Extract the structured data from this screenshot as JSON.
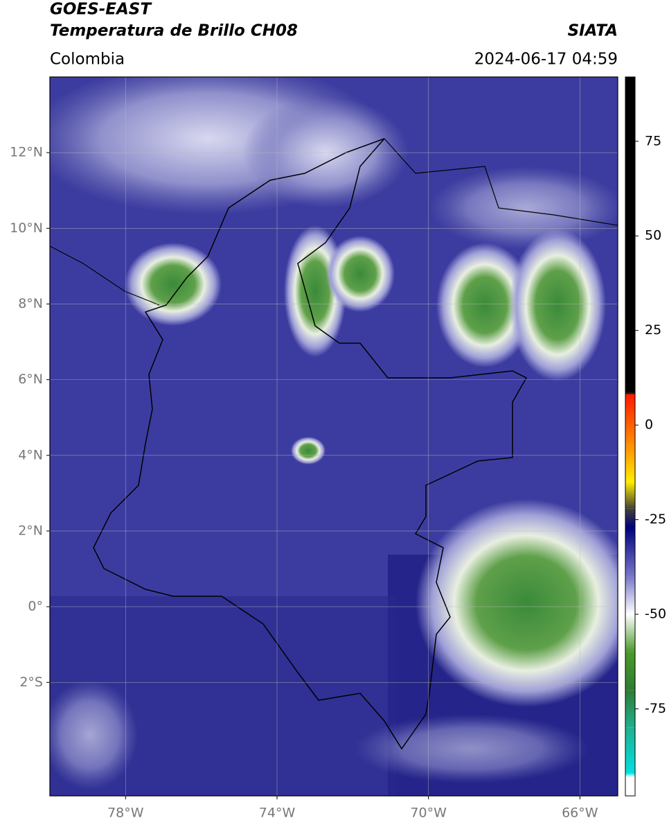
{
  "header": {
    "title": "GOES-EAST",
    "subtitle": "Temperatura de Brillo CH08",
    "region": "Colombia",
    "source": "SIATA",
    "datetime": "2024-06-17 04:59"
  },
  "map": {
    "xlim": [
      -80,
      -65
    ],
    "ylim": [
      -5,
      14
    ],
    "grid": true,
    "xticks": [
      {
        "value": -78,
        "label": "78°W"
      },
      {
        "value": -74,
        "label": "74°W"
      },
      {
        "value": -70,
        "label": "70°W"
      },
      {
        "value": -66,
        "label": "66°W"
      }
    ],
    "yticks": [
      {
        "value": 12,
        "label": "12°N"
      },
      {
        "value": 10,
        "label": "10°N"
      },
      {
        "value": 8,
        "label": "8°N"
      },
      {
        "value": 6,
        "label": "6°N"
      },
      {
        "value": 4,
        "label": "4°N"
      },
      {
        "value": 2,
        "label": "2°N"
      },
      {
        "value": 0,
        "label": "0°"
      },
      {
        "value": -2,
        "label": "2°S"
      }
    ]
  },
  "colorbar": {
    "lim": [
      -98,
      92
    ],
    "ticks": [
      75,
      50,
      25,
      0,
      -25,
      -50,
      -75
    ],
    "stops": [
      {
        "value": 92,
        "color": "#000000"
      },
      {
        "value": 8.5,
        "color": "#000000"
      },
      {
        "value": 8,
        "color": "#ff1a00"
      },
      {
        "value": -5,
        "color": "#ff8c00"
      },
      {
        "value": -15,
        "color": "#ffee00"
      },
      {
        "value": -22,
        "color": "#444433"
      },
      {
        "value": -27,
        "color": "#000080"
      },
      {
        "value": -40,
        "color": "#7878c8"
      },
      {
        "value": -50,
        "color": "#ffffff"
      },
      {
        "value": -60,
        "color": "#4a9a2a"
      },
      {
        "value": -70,
        "color": "#2e7d32"
      },
      {
        "value": -80,
        "color": "#20b090"
      },
      {
        "value": -92,
        "color": "#00e0e0"
      },
      {
        "value": -93,
        "color": "#ffffff"
      },
      {
        "value": -98,
        "color": "#ffffff"
      }
    ]
  }
}
